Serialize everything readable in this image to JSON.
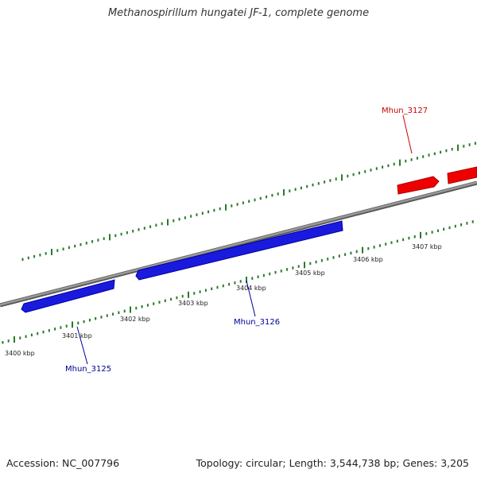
{
  "title": "Methanospirillum hungatei JF-1, complete genome",
  "footer": {
    "accession": "Accession: NC_007796",
    "summary": "Topology: circular; Length: 3,544,738 bp; Genes: 3,205"
  },
  "colors": {
    "backbone": "#888888",
    "tick": "#2a7a2a",
    "forward_gene": "#ee0000",
    "reverse_gene": "#1a1adf",
    "forward_label": "#cc0000",
    "reverse_label": "#000099"
  },
  "scale": {
    "unit": "kbp",
    "tick_labels": [
      "3400 kbp",
      "3401 kbp",
      "3402 kbp",
      "3403 kbp",
      "3404 kbp",
      "3405 kbp",
      "3406 kbp",
      "3407 kbp"
    ]
  },
  "genes": [
    {
      "name": "Mhun_3125",
      "strand": "reverse"
    },
    {
      "name": "Mhun_3126",
      "strand": "reverse"
    },
    {
      "name": "Mhun_3127",
      "strand": "forward"
    }
  ]
}
